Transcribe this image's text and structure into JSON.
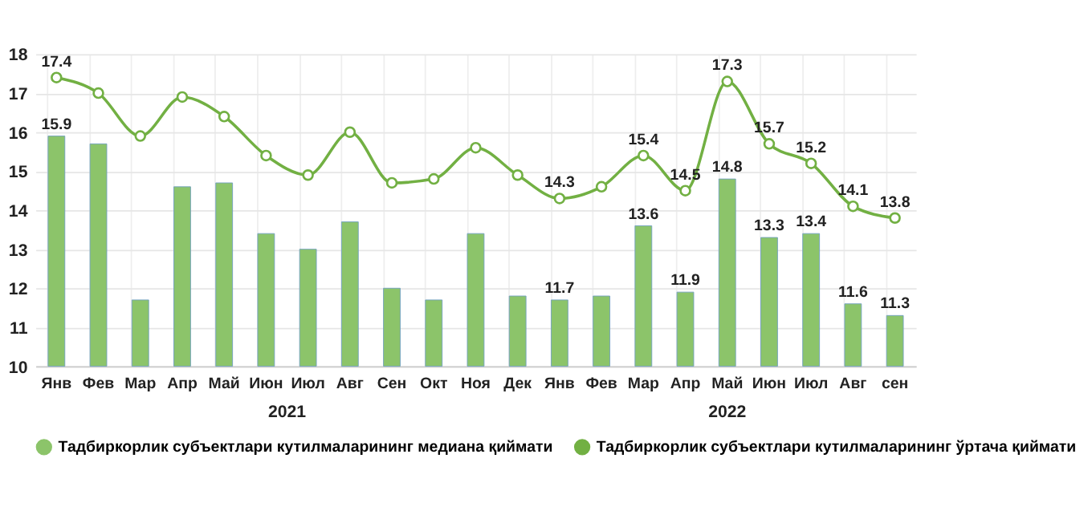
{
  "chart_data": {
    "type": "bar",
    "categories": [
      "Янв",
      "Фев",
      "Мар",
      "Апр",
      "Май",
      "Июн",
      "Июл",
      "Авг",
      "Сен",
      "Окт",
      "Ноя",
      "Дек",
      "Янв",
      "Фев",
      "Мар",
      "Апр",
      "Май",
      "Июн",
      "Июл",
      "Авг",
      "сен"
    ],
    "series": [
      {
        "name": "Тадбиркорлик субъектлари кутилмаларининг медиана қиймати",
        "color": "#8cc46a",
        "values": [
          15.9,
          15.7,
          11.7,
          14.6,
          14.7,
          13.4,
          13.0,
          13.7,
          12.0,
          11.7,
          13.4,
          11.8,
          11.7,
          11.8,
          13.6,
          11.9,
          14.8,
          13.3,
          13.4,
          11.6,
          11.3
        ],
        "value_labels": [
          "15.9",
          null,
          null,
          null,
          null,
          null,
          null,
          null,
          null,
          null,
          null,
          null,
          "11.7",
          null,
          "13.6",
          "11.9",
          "14.8",
          "13.3",
          "13.4",
          "11.6",
          "11.3"
        ]
      },
      {
        "name": "Тадбиркорлик субъектлари кутилмаларининг ўртача қиймати",
        "type": "line",
        "color": "#72b043",
        "marker": "circle",
        "values": [
          17.4,
          17.0,
          15.9,
          16.9,
          16.4,
          15.4,
          14.9,
          16.0,
          14.7,
          14.8,
          15.6,
          14.9,
          14.3,
          14.6,
          15.4,
          14.5,
          17.3,
          15.7,
          15.2,
          14.1,
          13.8
        ],
        "value_labels": [
          "17.4",
          null,
          null,
          null,
          null,
          null,
          null,
          null,
          null,
          null,
          null,
          null,
          "14.3",
          null,
          "15.4",
          "14.5",
          "17.3",
          "15.7",
          "15.2",
          "14.1",
          "13.8"
        ]
      }
    ],
    "annotations": [
      "2021",
      "2022"
    ],
    "ylim": [
      10,
      18
    ],
    "yticks": [
      10,
      11,
      12,
      13,
      14,
      15,
      16,
      17,
      18
    ],
    "grid": true,
    "legend": "bottom"
  }
}
